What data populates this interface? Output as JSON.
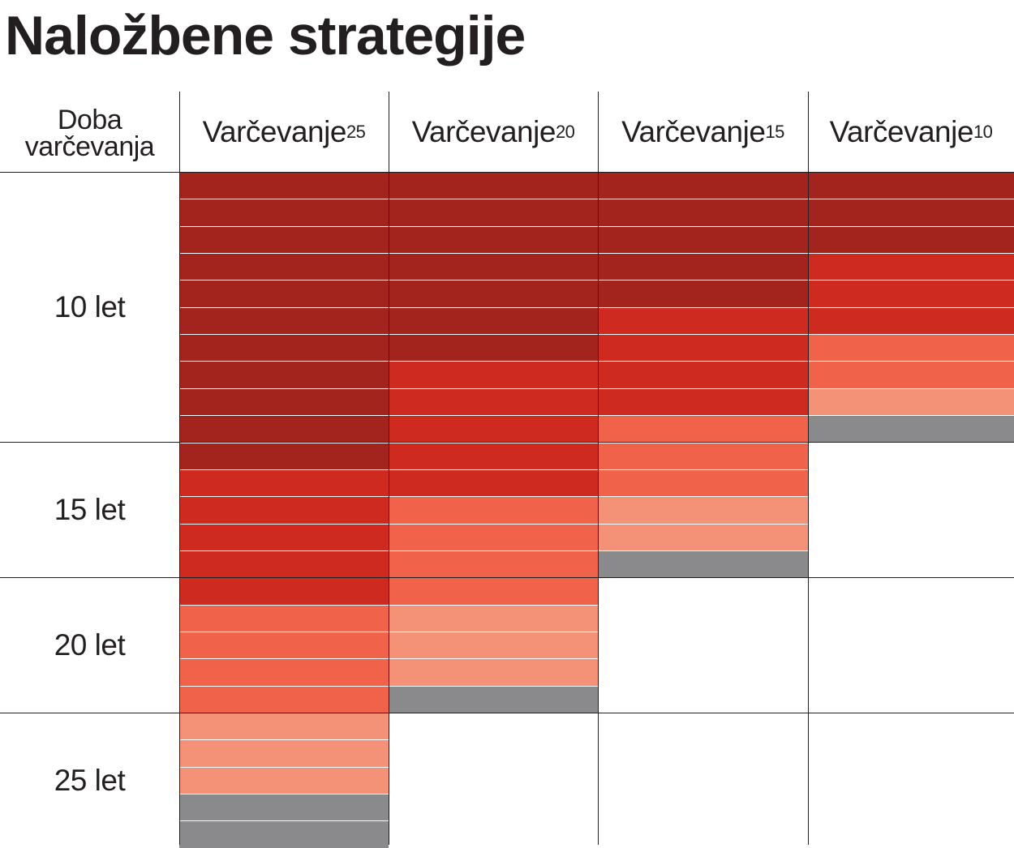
{
  "title": "Naložbene strategije",
  "header": {
    "first_line1": "Doba",
    "first_line2": "varčevanja",
    "columns": [
      {
        "label": "Varčevanje",
        "sup": "25"
      },
      {
        "label": "Varčevanje",
        "sup": "20"
      },
      {
        "label": "Varčevanje",
        "sup": "15"
      },
      {
        "label": "Varčevanje",
        "sup": "10"
      }
    ]
  },
  "rows": [
    "10 let",
    "15 let",
    "20 let",
    "25 let"
  ],
  "chart_data": {
    "type": "table",
    "title": "Naložbene strategije",
    "row_groups": [
      {
        "label": "10 let",
        "years": 10
      },
      {
        "label": "15 let",
        "years": 5
      },
      {
        "label": "20 let",
        "years": 5
      },
      {
        "label": "25 let",
        "years": 5
      }
    ],
    "band_colors": [
      "#a3231d",
      "#cf2a20",
      "#f0624a",
      "#f39277",
      "#8a8a8c"
    ],
    "columns": [
      {
        "name": "Varčevanje25",
        "total_years": 25,
        "bands": [
          11,
          5,
          4,
          3,
          2
        ]
      },
      {
        "name": "Varčevanje20",
        "total_years": 20,
        "bands": [
          7,
          5,
          4,
          3,
          1
        ]
      },
      {
        "name": "Varčevanje15",
        "total_years": 15,
        "bands": [
          5,
          4,
          3,
          2,
          1
        ]
      },
      {
        "name": "Varčevanje10",
        "total_years": 10,
        "bands": [
          3,
          3,
          2,
          1,
          1
        ]
      }
    ]
  }
}
